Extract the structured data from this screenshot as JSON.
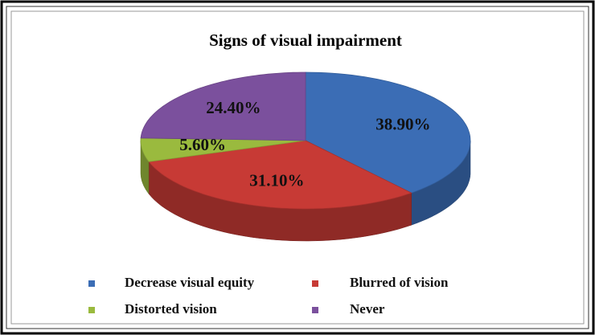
{
  "chart_data": {
    "type": "pie",
    "title": "Signs of  visual impairment",
    "categories": [
      "Decrease visual equity",
      "Blurred of vision",
      "Distorted vision",
      "Never"
    ],
    "values": [
      38.9,
      31.1,
      5.6,
      24.4
    ],
    "value_labels": [
      "38.90%",
      "31.10%",
      "5.60%",
      "24.40%"
    ],
    "colors": [
      "#3b6db5",
      "#c73a35",
      "#9aba3e",
      "#7b509d"
    ],
    "legend": "bottom"
  }
}
